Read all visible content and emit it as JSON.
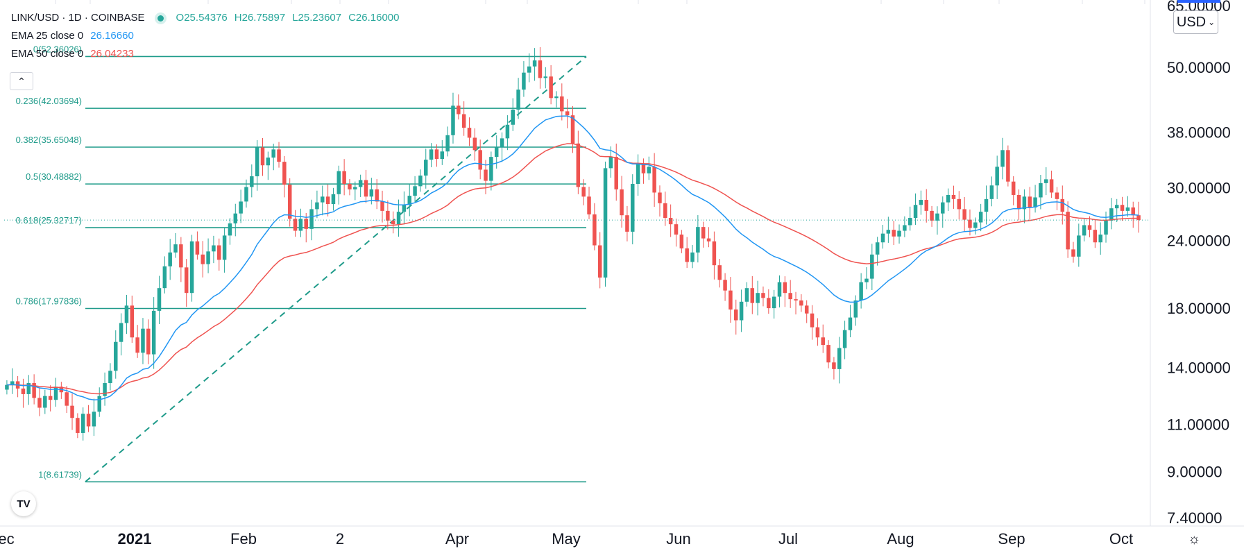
{
  "legend": {
    "symbol": "LINK/USD · 1D · COINBASE",
    "open": "O25.54376",
    "high": "H26.75897",
    "low": "L25.23607",
    "close": "C26.16000",
    "ema25_label": "EMA 25 close 0",
    "ema25_value": "26.16660",
    "ema50_label": "EMA 50 close 0",
    "ema50_value": "26.04233"
  },
  "currency": "USD",
  "collapse_icon": "chevron-up-icon",
  "logo": "TV",
  "settings_icon": "sun-gear-icon",
  "colors": {
    "up": "#26a69a",
    "down": "#ef5350",
    "ema25": "#2196f3",
    "ema50": "#ef5350",
    "fib": "#1f9b8a"
  },
  "chart_data": {
    "type": "candlestick",
    "symbol": "LINK/USD",
    "interval": "1D",
    "exchange": "COINBASE",
    "y_scale": "log",
    "ylim": [
      7.4,
      65.0
    ],
    "y_ticks": [
      {
        "value": 65.0,
        "label": "65.00000"
      },
      {
        "value": 50.0,
        "label": "50.00000"
      },
      {
        "value": 38.0,
        "label": "38.00000"
      },
      {
        "value": 30.0,
        "label": "30.00000"
      },
      {
        "value": 24.0,
        "label": "24.00000"
      },
      {
        "value": 18.0,
        "label": "18.00000"
      },
      {
        "value": 14.0,
        "label": "14.00000"
      },
      {
        "value": 11.0,
        "label": "11.00000"
      },
      {
        "value": 9.0,
        "label": "9.00000"
      },
      {
        "value": 7.4,
        "label": "7.40000"
      }
    ],
    "x_ticks": [
      "ec",
      "2021",
      "Feb",
      "2",
      "Apr",
      "May",
      "Jun",
      "Jul",
      "Aug",
      "Sep",
      "Oct"
    ],
    "fibonacci": [
      {
        "value": 52.36026,
        "label": "0(52.36026)"
      },
      {
        "value": 42.03694,
        "label": "0.236(42.03694)"
      },
      {
        "value": 35.65048,
        "label": "0.382(35.65048)"
      },
      {
        "value": 30.48882,
        "label": "0.5(30.48882)"
      },
      {
        "value": 25.32717,
        "label": "0.618(25.32717)"
      },
      {
        "value": 17.97836,
        "label": "0.786(17.97836)"
      },
      {
        "value": 8.61739,
        "label": "1(8.61739)"
      }
    ],
    "last_price": 26.16,
    "close_series": [
      13.0,
      13.2,
      12.8,
      12.5,
      13.1,
      12.3,
      11.8,
      12.4,
      12.2,
      12.9,
      12.6,
      11.9,
      11.3,
      10.6,
      11.5,
      10.9,
      11.6,
      12.4,
      13.1,
      13.8,
      15.6,
      16.9,
      18.2,
      15.9,
      14.9,
      16.5,
      14.8,
      17.8,
      19.6,
      21.5,
      22.8,
      23.6,
      21.4,
      19.2,
      23.9,
      22.6,
      21.7,
      22.9,
      23.5,
      22.1,
      24.5,
      25.8,
      26.9,
      28.3,
      30.1,
      31.5,
      35.6,
      33.0,
      34.1,
      35.3,
      33.5,
      30.4,
      26.3,
      25.0,
      26.3,
      25.2,
      27.4,
      28.2,
      28.9,
      28.0,
      29.2,
      32.2,
      30.5,
      29.8,
      30.1,
      31.0,
      28.9,
      29.8,
      28.3,
      27.2,
      26.1,
      25.7,
      27.1,
      27.9,
      29.0,
      30.2,
      31.6,
      33.8,
      35.3,
      33.9,
      35.0,
      37.5,
      42.5,
      41.0,
      38.7,
      37.1,
      35.2,
      32.4,
      30.9,
      34.2,
      35.6,
      37.0,
      39.2,
      41.8,
      45.5,
      48.9,
      50.2,
      51.5,
      47.8,
      48.1,
      43.9,
      44.2,
      41.5,
      40.8,
      36.2,
      30.1,
      28.9,
      26.8,
      23.5,
      20.5,
      32.6,
      34.2,
      29.8,
      26.7,
      24.9,
      30.5,
      33.2,
      31.9,
      32.8,
      29.4,
      28.1,
      26.4,
      25.7,
      24.6,
      23.2,
      21.9,
      22.8,
      25.4,
      24.2,
      23.9,
      21.6,
      20.3,
      19.4,
      17.9,
      17.1,
      18.5,
      19.6,
      18.4,
      19.2,
      18.8,
      18.0,
      18.9,
      20.1,
      19.2,
      18.7,
      18.6,
      18.2,
      17.6,
      16.6,
      15.9,
      15.4,
      14.3,
      13.9,
      15.2,
      16.4,
      17.3,
      18.6,
      20.1,
      20.4,
      22.6,
      23.8,
      24.7,
      25.1,
      24.4,
      25.0,
      25.6,
      26.4,
      27.9,
      28.5,
      27.2,
      26.1,
      26.9,
      28.2,
      29.1,
      28.6,
      27.4,
      26.2,
      25.3,
      25.9,
      27.1,
      28.6,
      30.3,
      32.8,
      35.2,
      30.8,
      29.1,
      27.4,
      28.9,
      27.6,
      28.8,
      30.6,
      31.1,
      29.4,
      28.6,
      27.1,
      23.1,
      22.4,
      24.5,
      25.6,
      25.1,
      23.8,
      24.6,
      26.1,
      27.5,
      27.9,
      27.2,
      27.6,
      26.7,
      26.16
    ]
  }
}
